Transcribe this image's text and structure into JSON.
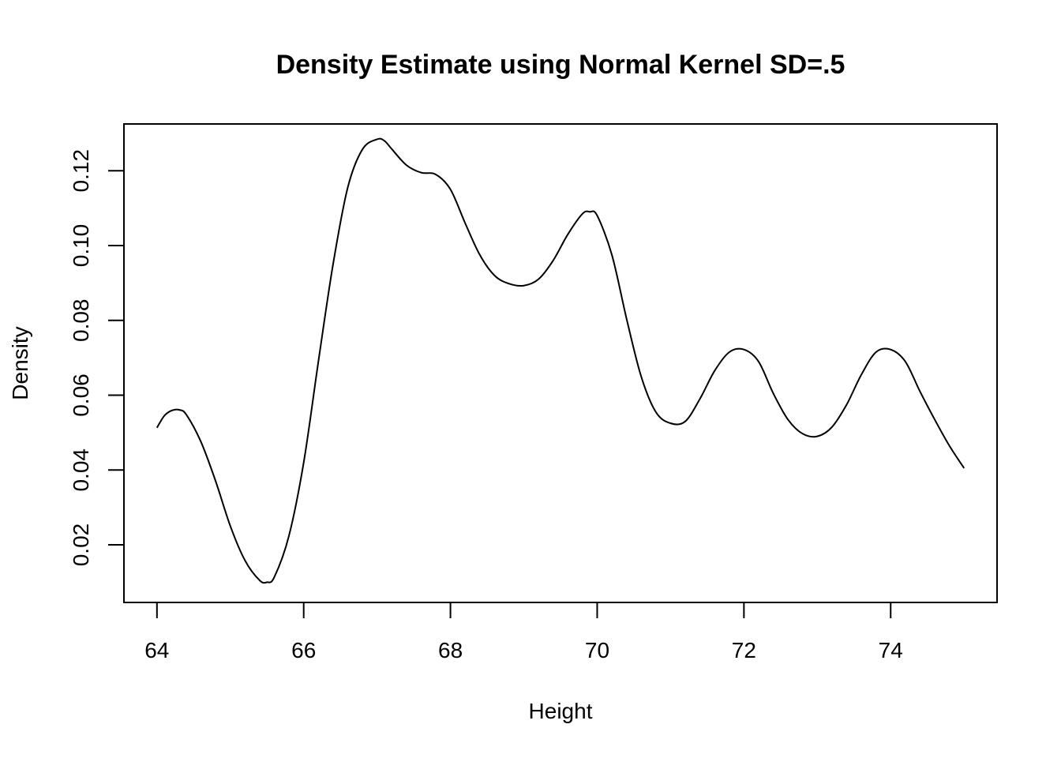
{
  "chart_data": {
    "type": "line",
    "title": "Density Estimate using Normal Kernel SD=.5",
    "xlabel": "Height",
    "ylabel": "Density",
    "xlim": [
      63.55,
      75.45
    ],
    "ylim": [
      0.0046,
      0.1325
    ],
    "grid": false,
    "x_ticks": [
      64,
      66,
      68,
      70,
      72,
      74
    ],
    "x_tick_labels": [
      "64",
      "66",
      "68",
      "70",
      "72",
      "74"
    ],
    "y_ticks": [
      0.02,
      0.04,
      0.06,
      0.08,
      0.1,
      0.12
    ],
    "y_tick_labels": [
      "0.02",
      "0.04",
      "0.06",
      "0.08",
      "0.10",
      "0.12"
    ],
    "series": [
      {
        "x": [
          64.0,
          64.1,
          64.2,
          64.3,
          64.4,
          64.6,
          64.8,
          65.0,
          65.2,
          65.4,
          65.5,
          65.6,
          65.8,
          66.0,
          66.2,
          66.4,
          66.6,
          66.8,
          67.0,
          67.1,
          67.2,
          67.4,
          67.6,
          67.8,
          68.0,
          68.2,
          68.4,
          68.6,
          68.8,
          69.0,
          69.2,
          69.4,
          69.6,
          69.8,
          69.9,
          70.0,
          70.2,
          70.4,
          70.6,
          70.8,
          71.0,
          71.2,
          71.4,
          71.6,
          71.8,
          72.0,
          72.2,
          72.4,
          72.6,
          72.8,
          73.0,
          73.2,
          73.4,
          73.6,
          73.8,
          74.0,
          74.2,
          74.4,
          74.6,
          74.8,
          75.0
        ],
        "y": [
          0.0513,
          0.0545,
          0.0559,
          0.0561,
          0.0548,
          0.0475,
          0.037,
          0.025,
          0.0158,
          0.0105,
          0.01,
          0.0114,
          0.0225,
          0.042,
          0.069,
          0.095,
          0.1155,
          0.1257,
          0.1284,
          0.128,
          0.1258,
          0.1215,
          0.1195,
          0.119,
          0.115,
          0.106,
          0.0975,
          0.092,
          0.0898,
          0.0893,
          0.091,
          0.096,
          0.103,
          0.1085,
          0.109,
          0.108,
          0.0975,
          0.0805,
          0.065,
          0.0555,
          0.0525,
          0.053,
          0.059,
          0.0665,
          0.0715,
          0.0722,
          0.069,
          0.0605,
          0.0535,
          0.0497,
          0.049,
          0.0515,
          0.0575,
          0.0655,
          0.0715,
          0.0722,
          0.069,
          0.061,
          0.0535,
          0.0465,
          0.0405
        ]
      }
    ]
  }
}
